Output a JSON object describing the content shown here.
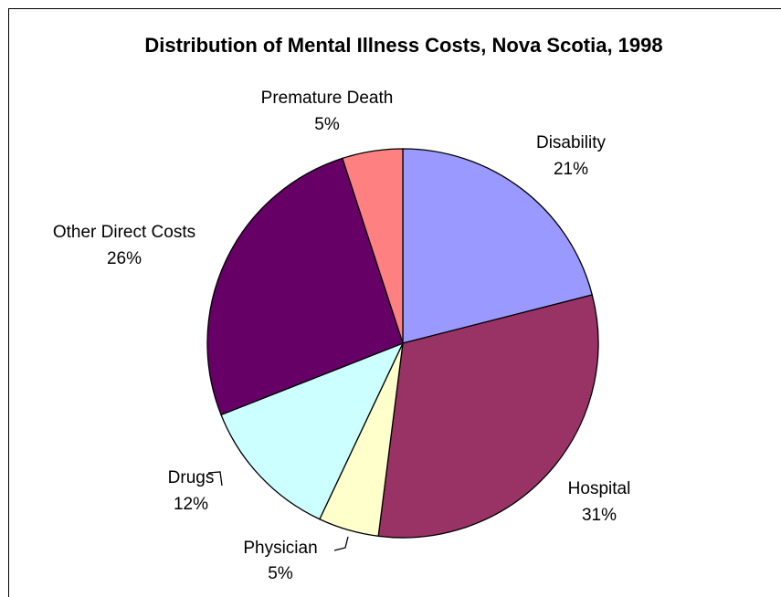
{
  "chart_data": {
    "type": "pie",
    "title": "Distribution of Mental Illness Costs, Nova Scotia, 1998",
    "start_angle_deg": 0,
    "direction": "clockwise",
    "slices": [
      {
        "name": "Disability",
        "value": 21,
        "label": "21%",
        "color": "#9999ff"
      },
      {
        "name": "Hospital",
        "value": 31,
        "label": "31%",
        "color": "#993366"
      },
      {
        "name": "Physician",
        "value": 5,
        "label": "5%",
        "color": "#ffffcc"
      },
      {
        "name": "Drugs",
        "value": 12,
        "label": "12%",
        "color": "#ccffff"
      },
      {
        "name": "Other Direct Costs",
        "value": 26,
        "label": "26%",
        "color": "#660066"
      },
      {
        "name": "Premature Death",
        "value": 5,
        "label": "5%",
        "color": "#ff8080"
      }
    ]
  }
}
